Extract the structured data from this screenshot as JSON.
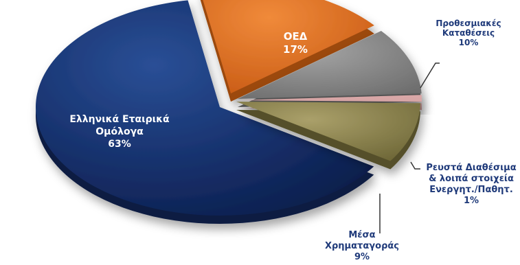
{
  "chart_data": {
    "type": "pie",
    "title": "",
    "slices": [
      {
        "label_lines": [
          "Ελληνικά Εταιρικά",
          "Ομόλογα"
        ],
        "percent_label": "63%",
        "value": 63,
        "color": "#12306e",
        "label_color": "#ffffff"
      },
      {
        "label_lines": [
          "ΟΕΔ"
        ],
        "percent_label": "17%",
        "value": 17,
        "color": "#d8661c",
        "label_color": "#ffffff"
      },
      {
        "label_lines": [
          "Προθεσμιακές",
          "Καταθέσεις"
        ],
        "percent_label": "10%",
        "value": 10,
        "color": "#8a8a8a",
        "label_color": "#1f3a7a"
      },
      {
        "label_lines": [
          "Ρευστά Διαθέσιμα",
          "& λοιπά στοιχεία",
          "Ενεργητ./Παθητ."
        ],
        "percent_label": "1%",
        "value": 1,
        "color": "#d9a7a7",
        "label_color": "#1f3a7a"
      },
      {
        "label_lines": [
          "Μέσα",
          "Χρηματαγοράς"
        ],
        "percent_label": "9%",
        "value": 9,
        "color": "#8d8452",
        "label_color": "#1f3a7a"
      }
    ]
  }
}
